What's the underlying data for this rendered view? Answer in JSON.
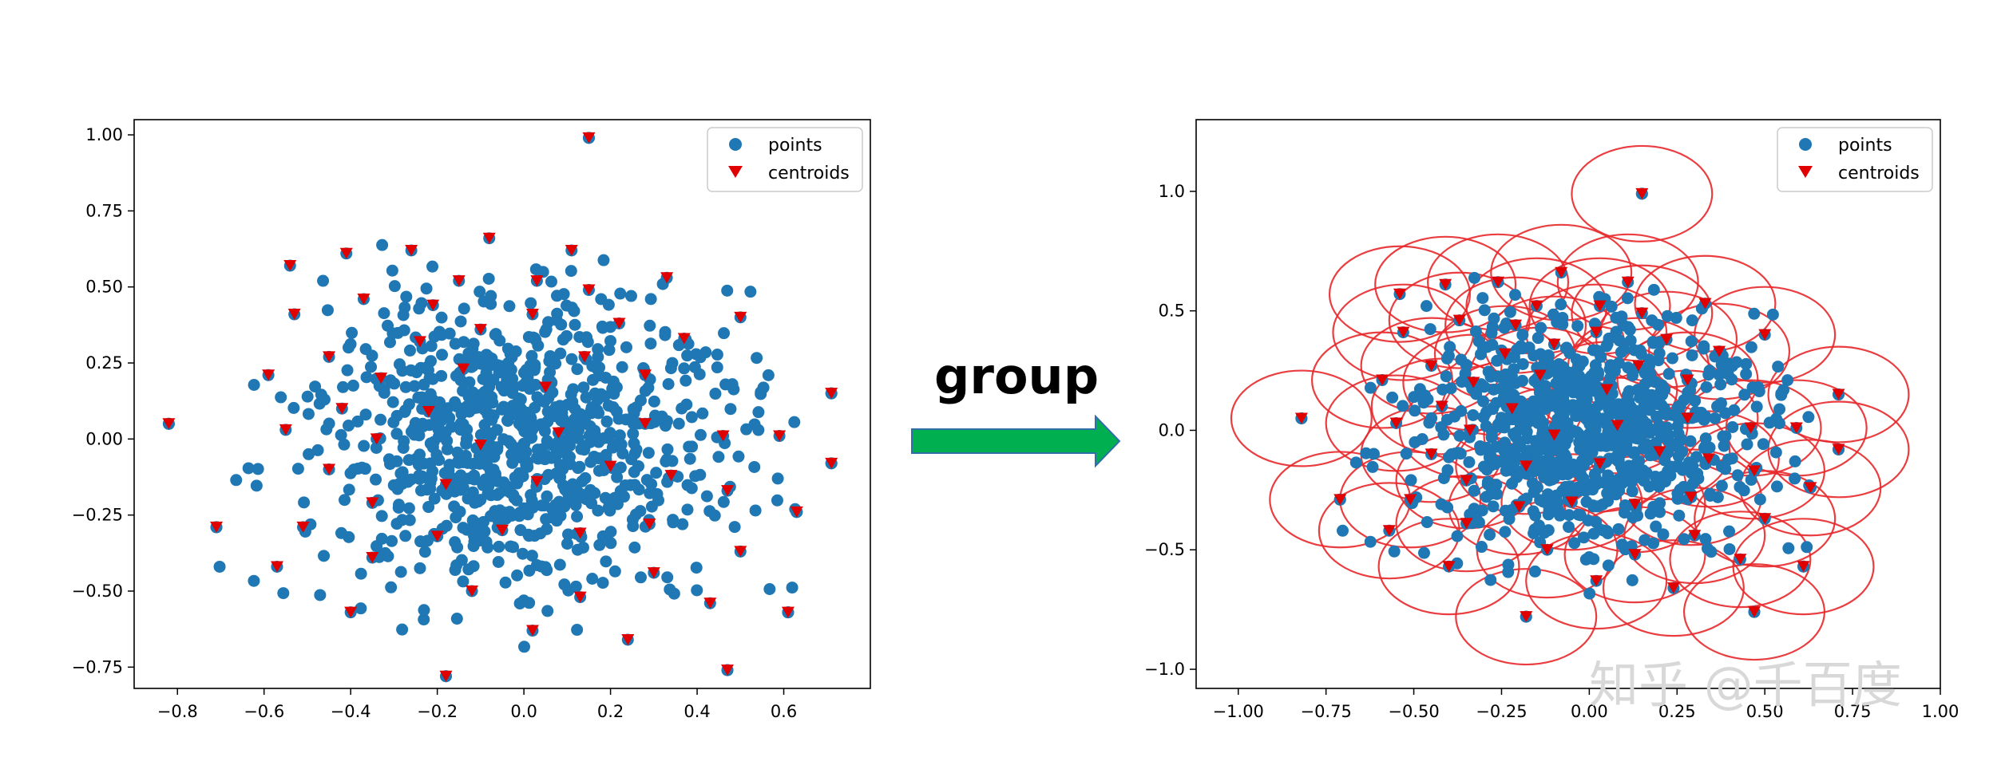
{
  "transition": {
    "label": "group",
    "arrow_color": "#00b050"
  },
  "watermark": "知乎 @千百度",
  "colors": {
    "points": "#1f77b4",
    "centroids": "#e00000",
    "circles": "#e8282b"
  },
  "chart_data": [
    {
      "type": "scatter",
      "title": "",
      "xlabel": "",
      "ylabel": "",
      "xlim": [
        -0.9,
        0.8
      ],
      "ylim": [
        -0.82,
        1.05
      ],
      "xticks": [
        -0.8,
        -0.6,
        -0.4,
        -0.2,
        0.0,
        0.2,
        0.4,
        0.6
      ],
      "xtick_labels": [
        "−0.8",
        "−0.6",
        "−0.4",
        "−0.2",
        "0.0",
        "0.2",
        "0.4",
        "0.6"
      ],
      "yticks": [
        1.0,
        0.75,
        0.5,
        0.25,
        0.0,
        -0.25,
        -0.5,
        -0.75
      ],
      "ytick_labels": [
        "1.00",
        "0.75",
        "0.50",
        "0.25",
        "0.00",
        "−0.25",
        "−0.50",
        "−0.75"
      ],
      "legend": {
        "position": "top-right",
        "entries": [
          "points",
          "centroids"
        ]
      },
      "series": [
        {
          "name": "points",
          "marker": "circle",
          "generated": {
            "count": 900,
            "center": [
              0.0,
              0.0
            ],
            "sigma": [
              0.24,
              0.24
            ],
            "seed": 7
          },
          "extra_points": [
            [
              -0.82,
              0.05
            ],
            [
              0.15,
              0.99
            ],
            [
              -0.18,
              -0.78
            ],
            [
              0.47,
              -0.76
            ],
            [
              0.71,
              0.15
            ],
            [
              0.71,
              -0.08
            ],
            [
              -0.71,
              -0.29
            ],
            [
              0.63,
              -0.24
            ],
            [
              0.61,
              -0.57
            ]
          ]
        },
        {
          "name": "centroids",
          "marker": "triangle_down",
          "points": [
            [
              -0.82,
              0.05
            ],
            [
              0.15,
              0.99
            ],
            [
              -0.08,
              0.66
            ],
            [
              -0.26,
              0.62
            ],
            [
              0.11,
              0.62
            ],
            [
              -0.41,
              0.61
            ],
            [
              -0.54,
              0.57
            ],
            [
              -0.15,
              0.52
            ],
            [
              0.03,
              0.52
            ],
            [
              0.33,
              0.53
            ],
            [
              -0.37,
              0.46
            ],
            [
              -0.21,
              0.44
            ],
            [
              0.15,
              0.49
            ],
            [
              -0.53,
              0.41
            ],
            [
              0.02,
              0.41
            ],
            [
              0.5,
              0.4
            ],
            [
              -0.1,
              0.36
            ],
            [
              0.22,
              0.38
            ],
            [
              0.37,
              0.33
            ],
            [
              -0.24,
              0.32
            ],
            [
              -0.45,
              0.27
            ],
            [
              0.14,
              0.27
            ],
            [
              -0.59,
              0.21
            ],
            [
              -0.14,
              0.23
            ],
            [
              -0.33,
              0.2
            ],
            [
              0.28,
              0.21
            ],
            [
              0.05,
              0.17
            ],
            [
              -0.42,
              0.1
            ],
            [
              -0.22,
              0.09
            ],
            [
              0.71,
              0.15
            ],
            [
              -0.55,
              0.03
            ],
            [
              -0.34,
              0.0
            ],
            [
              -0.1,
              -0.02
            ],
            [
              0.08,
              0.02
            ],
            [
              0.28,
              0.05
            ],
            [
              0.46,
              0.01
            ],
            [
              0.59,
              0.01
            ],
            [
              -0.45,
              -0.1
            ],
            [
              -0.18,
              -0.15
            ],
            [
              0.2,
              -0.09
            ],
            [
              0.34,
              -0.12
            ],
            [
              0.71,
              -0.08
            ],
            [
              0.03,
              -0.14
            ],
            [
              -0.35,
              -0.21
            ],
            [
              0.47,
              -0.17
            ],
            [
              -0.71,
              -0.29
            ],
            [
              -0.51,
              -0.29
            ],
            [
              -0.2,
              -0.32
            ],
            [
              0.13,
              -0.31
            ],
            [
              0.29,
              -0.28
            ],
            [
              -0.05,
              -0.3
            ],
            [
              0.63,
              -0.24
            ],
            [
              -0.35,
              -0.39
            ],
            [
              0.5,
              -0.37
            ],
            [
              -0.57,
              -0.42
            ],
            [
              0.3,
              -0.44
            ],
            [
              -0.12,
              -0.5
            ],
            [
              0.13,
              -0.52
            ],
            [
              0.43,
              -0.54
            ],
            [
              -0.4,
              -0.57
            ],
            [
              0.61,
              -0.57
            ],
            [
              0.02,
              -0.63
            ],
            [
              0.24,
              -0.66
            ],
            [
              0.47,
              -0.76
            ],
            [
              -0.18,
              -0.78
            ]
          ]
        }
      ]
    },
    {
      "type": "scatter",
      "title": "",
      "xlabel": "",
      "ylabel": "",
      "xlim": [
        -1.12,
        1.0
      ],
      "ylim": [
        -1.08,
        1.3
      ],
      "xticks": [
        -1.0,
        -0.75,
        -0.5,
        -0.25,
        0.0,
        0.25,
        0.5,
        0.75,
        1.0
      ],
      "xtick_labels": [
        "−1.00",
        "−0.75",
        "−0.50",
        "−0.25",
        "0.00",
        "0.25",
        "0.50",
        "0.75",
        "1.00"
      ],
      "yticks": [
        1.0,
        0.5,
        0.0,
        -0.5,
        -1.0
      ],
      "ytick_labels": [
        "1.0",
        "0.5",
        "0.0",
        "−0.5",
        "−1.0"
      ],
      "legend": {
        "position": "top-right",
        "entries": [
          "points",
          "centroids"
        ]
      },
      "circle_radius": 0.2,
      "series": [
        {
          "name": "points",
          "marker": "circle",
          "same_as_chart": 0
        },
        {
          "name": "centroids",
          "marker": "triangle_down",
          "same_as_chart": 0
        },
        {
          "name": "group circles",
          "marker": "circle_outline",
          "centers": "centroids",
          "radius": 0.2
        }
      ]
    }
  ]
}
